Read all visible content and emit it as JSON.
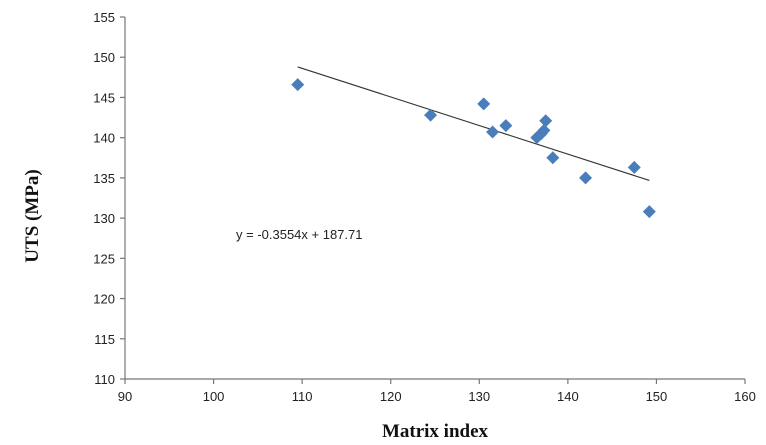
{
  "chart_data": {
    "type": "scatter",
    "xlabel": "Matrix index",
    "ylabel": "UTS (MPa)",
    "xlim": [
      90,
      160
    ],
    "ylim": [
      110,
      155
    ],
    "xticks": [
      90,
      100,
      110,
      120,
      130,
      140,
      150,
      160
    ],
    "yticks": [
      110,
      115,
      120,
      125,
      130,
      135,
      140,
      145,
      150,
      155
    ],
    "grid": false,
    "marker": "diamond",
    "marker_color": "#4a7ebb",
    "points": [
      {
        "x": 109.5,
        "y": 146.6
      },
      {
        "x": 124.5,
        "y": 142.8
      },
      {
        "x": 130.5,
        "y": 144.2
      },
      {
        "x": 131.5,
        "y": 140.7
      },
      {
        "x": 133.0,
        "y": 141.5
      },
      {
        "x": 136.5,
        "y": 140.0
      },
      {
        "x": 137.0,
        "y": 140.5
      },
      {
        "x": 137.3,
        "y": 140.9
      },
      {
        "x": 137.5,
        "y": 142.1
      },
      {
        "x": 138.3,
        "y": 137.5
      },
      {
        "x": 142.0,
        "y": 135.0
      },
      {
        "x": 147.5,
        "y": 136.3
      },
      {
        "x": 149.2,
        "y": 130.8
      }
    ],
    "trendline": {
      "slope": -0.3554,
      "intercept": 187.71,
      "x_start": 109.5,
      "x_end": 149.2,
      "color": "#333333"
    },
    "equation_label": "y = -0.3554x + 187.71"
  }
}
